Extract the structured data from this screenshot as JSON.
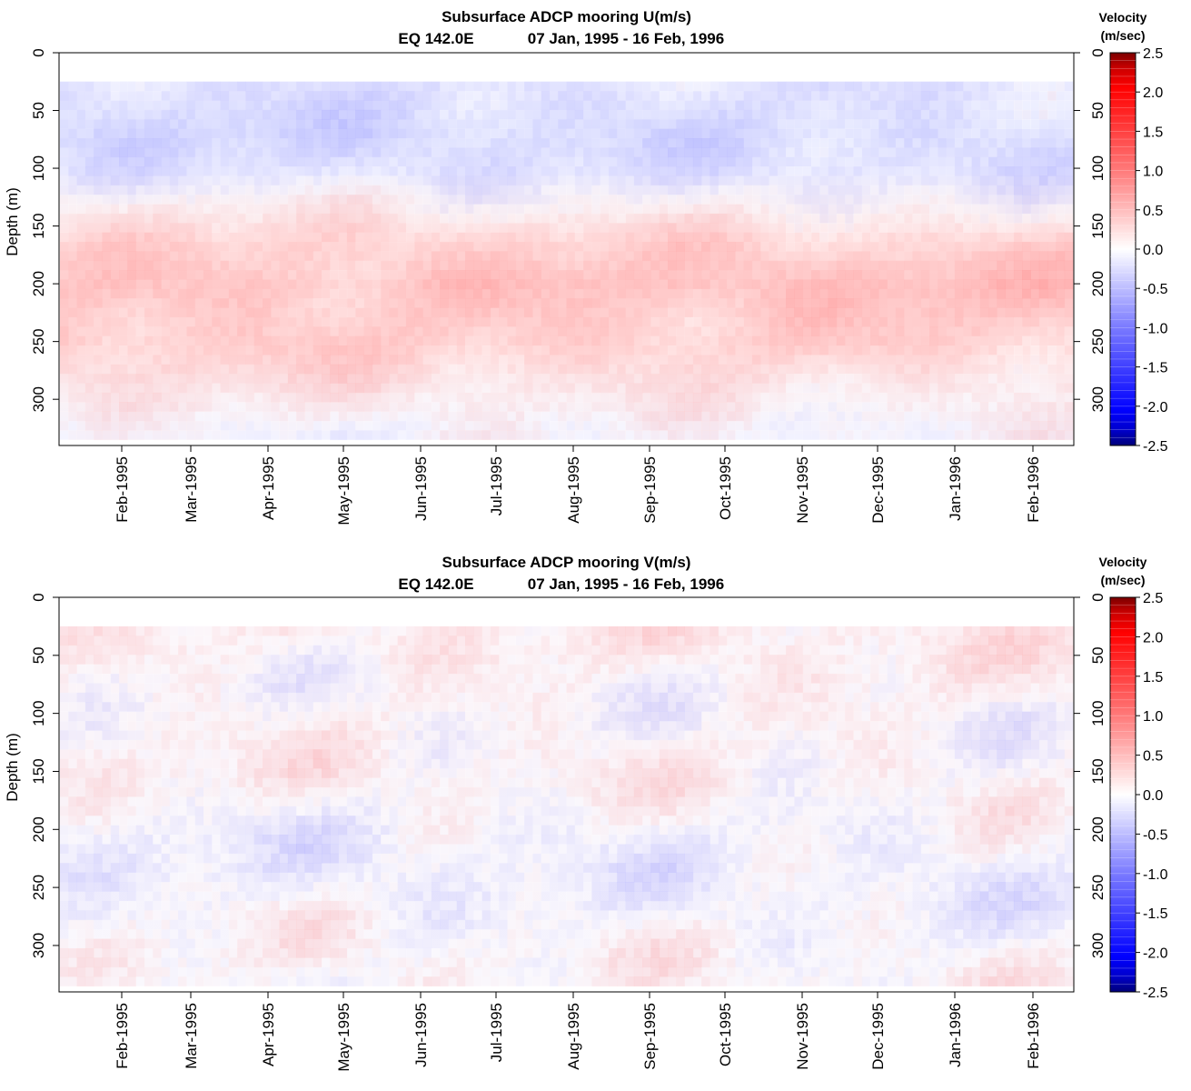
{
  "chart_data": [
    {
      "type": "heatmap",
      "title": "Subsurface ADCP mooring U(m/s)",
      "subtitle_location": "EQ 142.0E",
      "subtitle_dates": "07 Jan, 1995 - 16 Feb, 1996",
      "ylabel": "Depth (m)",
      "y_reversed": true,
      "ylim": [
        0,
        340
      ],
      "y_ticks": [
        "0",
        "50",
        "100",
        "150",
        "200",
        "250",
        "300"
      ],
      "x_ticks": [
        "Feb-1995",
        "Mar-1995",
        "Apr-1995",
        "May-1995",
        "Jun-1995",
        "Jul-1995",
        "Aug-1995",
        "Sep-1995",
        "Oct-1995",
        "Nov-1995",
        "Dec-1995",
        "Jan-1996",
        "Feb-1996"
      ],
      "colorbar": {
        "title_line1": "Velocity",
        "title_line2": "(m/sec)",
        "range": [
          -2.5,
          2.5
        ],
        "ticks": [
          "2.5",
          "2.0",
          "1.5",
          "1.0",
          "0.5",
          "0.0",
          "-0.5",
          "-1.0",
          "-1.5",
          "-2.0",
          "-2.5"
        ],
        "positive_color": "#ff0000",
        "negative_color": "#0000ff"
      },
      "data_depth_range_m": [
        25,
        335
      ],
      "approx_profile_m_per_s": [
        {
          "depth": 40,
          "value": -0.3
        },
        {
          "depth": 100,
          "value": -0.2
        },
        {
          "depth": 200,
          "value": 0.5
        },
        {
          "depth": 250,
          "value": 0.45
        },
        {
          "depth": 320,
          "value": 0.0
        }
      ]
    },
    {
      "type": "heatmap",
      "title": "Subsurface ADCP mooring V(m/s)",
      "subtitle_location": "EQ 142.0E",
      "subtitle_dates": "07 Jan, 1995 - 16 Feb, 1996",
      "ylabel": "Depth (m)",
      "y_reversed": true,
      "ylim": [
        0,
        340
      ],
      "y_ticks": [
        "0",
        "50",
        "100",
        "150",
        "200",
        "250",
        "300"
      ],
      "x_ticks": [
        "Feb-1995",
        "Mar-1995",
        "Apr-1995",
        "May-1995",
        "Jun-1995",
        "Jul-1995",
        "Aug-1995",
        "Sep-1995",
        "Oct-1995",
        "Nov-1995",
        "Dec-1995",
        "Jan-1996",
        "Feb-1996"
      ],
      "colorbar": {
        "title_line1": "Velocity",
        "title_line2": "(m/sec)",
        "range": [
          -2.5,
          2.5
        ],
        "ticks": [
          "2.5",
          "2.0",
          "1.5",
          "1.0",
          "0.5",
          "0.0",
          "-0.5",
          "-1.0",
          "-1.5",
          "-2.0",
          "-2.5"
        ],
        "positive_color": "#ff0000",
        "negative_color": "#0000ff"
      },
      "data_depth_range_m": [
        25,
        335
      ],
      "approx_profile_m_per_s": [
        {
          "depth": 40,
          "value": 0.1
        },
        {
          "depth": 150,
          "value": 0.05
        },
        {
          "depth": 200,
          "value": -0.1
        },
        {
          "depth": 300,
          "value": 0.0
        }
      ]
    }
  ]
}
